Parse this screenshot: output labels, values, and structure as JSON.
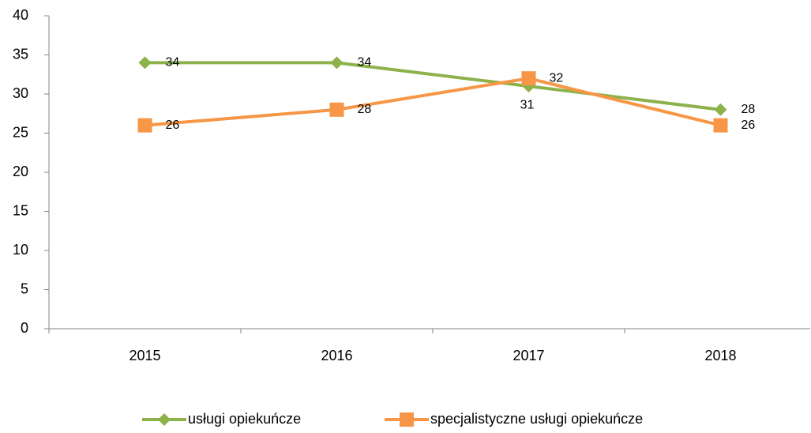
{
  "chart_data": {
    "type": "line",
    "categories": [
      "2015",
      "2016",
      "2017",
      "2018"
    ],
    "series": [
      {
        "name": "usługi opiekuńcze",
        "color": "#8db24c",
        "marker": "diamond",
        "values": [
          34,
          34,
          31,
          28
        ]
      },
      {
        "name": "specjalistyczne usługi opiekuńcze",
        "color": "#f79646",
        "marker": "square",
        "values": [
          26,
          28,
          32,
          26
        ]
      }
    ],
    "ylim": [
      0,
      40
    ],
    "yticks": [
      0,
      5,
      10,
      15,
      20,
      25,
      30,
      35,
      40
    ],
    "grid": false,
    "legend": "bottom"
  }
}
